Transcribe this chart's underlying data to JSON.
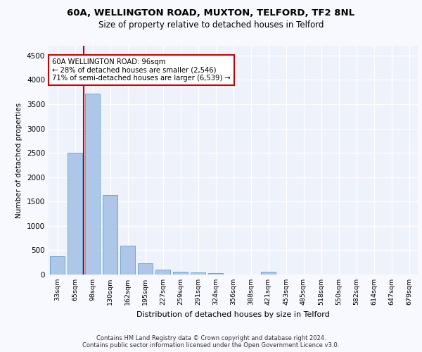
{
  "title1": "60A, WELLINGTON ROAD, MUXTON, TELFORD, TF2 8NL",
  "title2": "Size of property relative to detached houses in Telford",
  "xlabel": "Distribution of detached houses by size in Telford",
  "ylabel": "Number of detached properties",
  "categories": [
    "33sqm",
    "65sqm",
    "98sqm",
    "130sqm",
    "162sqm",
    "195sqm",
    "227sqm",
    "259sqm",
    "291sqm",
    "324sqm",
    "356sqm",
    "388sqm",
    "421sqm",
    "453sqm",
    "485sqm",
    "518sqm",
    "550sqm",
    "582sqm",
    "614sqm",
    "647sqm",
    "679sqm"
  ],
  "values": [
    370,
    2500,
    3720,
    1630,
    590,
    230,
    105,
    65,
    45,
    35,
    0,
    0,
    60,
    0,
    0,
    0,
    0,
    0,
    0,
    0,
    0
  ],
  "bar_color": "#aec6e8",
  "bar_edge_color": "#5a9fd4",
  "highlight_index": 2,
  "highlight_line_color": "#cc0000",
  "annotation_border_color": "#cc0000",
  "annotation_text_line1": "60A WELLINGTON ROAD: 96sqm",
  "annotation_text_line2": "← 28% of detached houses are smaller (2,546)",
  "annotation_text_line3": "71% of semi-detached houses are larger (6,539) →",
  "ylim": [
    0,
    4700
  ],
  "yticks": [
    0,
    500,
    1000,
    1500,
    2000,
    2500,
    3000,
    3500,
    4000,
    4500
  ],
  "background_color": "#eef2fb",
  "grid_color": "#ffffff",
  "footer_line1": "Contains HM Land Registry data © Crown copyright and database right 2024.",
  "footer_line2": "Contains public sector information licensed under the Open Government Licence v3.0."
}
